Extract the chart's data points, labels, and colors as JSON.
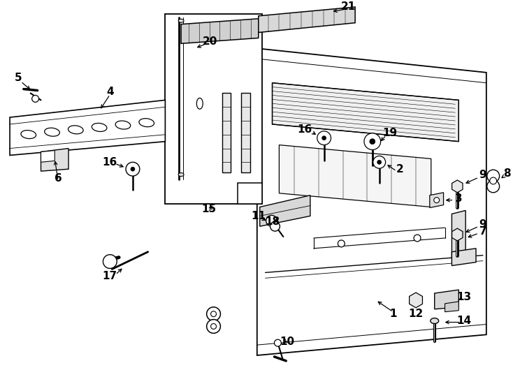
{
  "bg_color": "#ffffff",
  "line_color": "#000000",
  "label_fontsize": 11,
  "parts_label_fontsize": 10
}
